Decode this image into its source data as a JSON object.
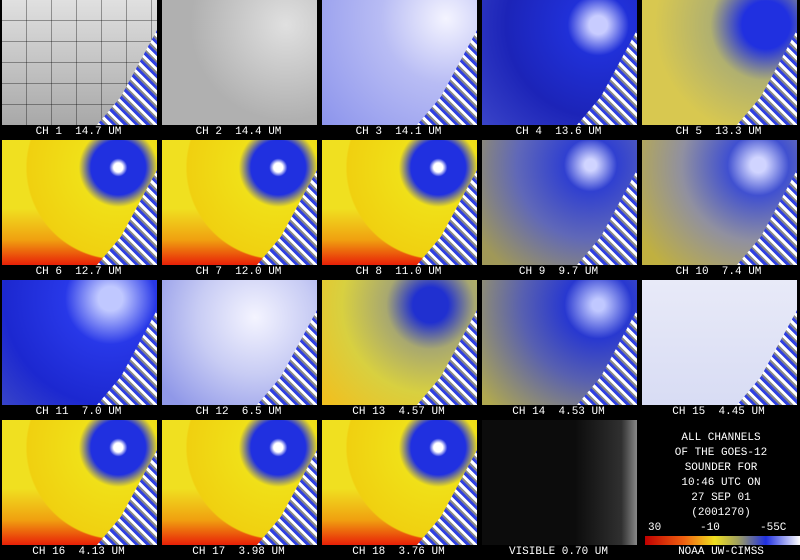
{
  "panels": [
    "CH 1  14.7 UM",
    "CH 2  14.4 UM",
    "CH 3  14.1 UM",
    "CH 4  13.6 UM",
    "CH 5  13.3 UM",
    "CH 6  12.7 UM",
    "CH 7  12.0 UM",
    "CH 8  11.0 UM",
    "CH 9  9.7 UM",
    "CH 10  7.4 UM",
    "CH 11  7.0 UM",
    "CH 12  6.5 UM",
    "CH 13  4.57 UM",
    "CH 14  4.53 UM",
    "CH 15  4.45 UM",
    "CH 16  4.13 UM",
    "CH 17  3.98 UM",
    "CH 18  3.76 UM",
    "VISIBLE 0.70 UM"
  ],
  "info": {
    "lines": [
      "ALL CHANNELS",
      "OF THE GOES-12",
      "SOUNDER FOR",
      "10:46 UTC ON",
      "27 SEP 01",
      "(2001270)"
    ],
    "scale_labels": [
      "30",
      "-10",
      "-55C"
    ],
    "credit": "NOAA UW-CIMSS"
  }
}
